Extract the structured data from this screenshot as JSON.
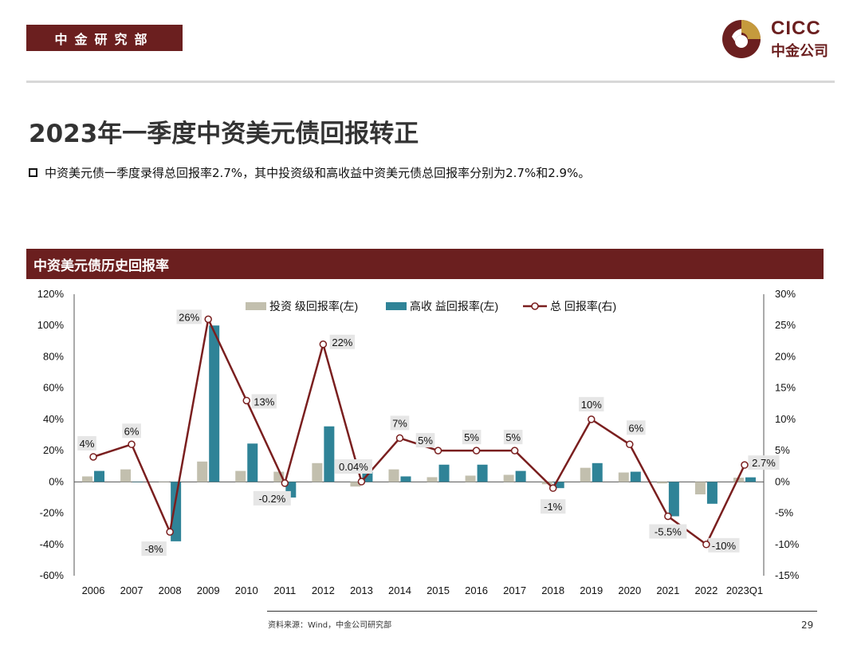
{
  "header": {
    "dept_label": "中金研究部",
    "logo_en": "CICC",
    "logo_cn": "中金公司"
  },
  "page_title": "2023年一季度中资美元债回报转正",
  "bullet_text": "中资美元债一季度录得总回报率2.7%，其中投资级和高收益中资美元债总回报率分别为2.7%和2.9%。",
  "chart_header": "中资美元债历史回报率",
  "source": "资料来源：Wind，中金公司研究部",
  "page_number": "29",
  "colors": {
    "brand": "#6b1f1f",
    "ig_bar": "#c2bfae",
    "hy_bar": "#2f8397",
    "line": "#7a1f1f"
  },
  "chart_data": {
    "type": "bar",
    "categories": [
      "2006",
      "2007",
      "2008",
      "2009",
      "2010",
      "2011",
      "2012",
      "2013",
      "2014",
      "2015",
      "2016",
      "2017",
      "2018",
      "2019",
      "2020",
      "2021",
      "2022",
      "2023Q1"
    ],
    "series": [
      {
        "name": "投资 级回报率(左)",
        "axis": "left",
        "type": "bar",
        "values": [
          3.5,
          8,
          0,
          13,
          7,
          6.5,
          12,
          -3,
          8,
          3,
          4,
          4.5,
          -1.5,
          9,
          6,
          -1,
          -8,
          2.7
        ]
      },
      {
        "name": "高收 益回报率(左)",
        "axis": "left",
        "type": "bar",
        "values": [
          7,
          0,
          -38,
          100,
          24.5,
          -10,
          35.5,
          6.5,
          3.5,
          11,
          11,
          7,
          -4,
          12,
          6.5,
          -22,
          -14,
          2.9
        ]
      },
      {
        "name": "总 回报率(右)",
        "axis": "right",
        "type": "line",
        "values": [
          4,
          6,
          -8,
          26,
          13,
          -0.2,
          22,
          0.04,
          7,
          5,
          5,
          5,
          -1,
          10,
          6,
          -5.5,
          -10,
          2.7
        ],
        "labels": [
          "4%",
          "6%",
          "-8%",
          "26%",
          "13%",
          "-0.2%",
          "22%",
          "0.04%",
          "7%",
          "5%",
          "5%",
          "5%",
          "-1%",
          "10%",
          "6%",
          "-5.5%",
          "-10%",
          "2.7%"
        ]
      }
    ],
    "y_left": {
      "min": -60,
      "max": 120,
      "ticks": [
        "120%",
        "100%",
        "80%",
        "60%",
        "40%",
        "20%",
        "0%",
        "-20%",
        "-40%",
        "-60%"
      ]
    },
    "y_right": {
      "min": -15,
      "max": 30,
      "ticks": [
        "30%",
        "25%",
        "20%",
        "15%",
        "10%",
        "5%",
        "0%",
        "-5%",
        "-10%",
        "-15%"
      ]
    },
    "legend": "top-center",
    "grid": false
  }
}
